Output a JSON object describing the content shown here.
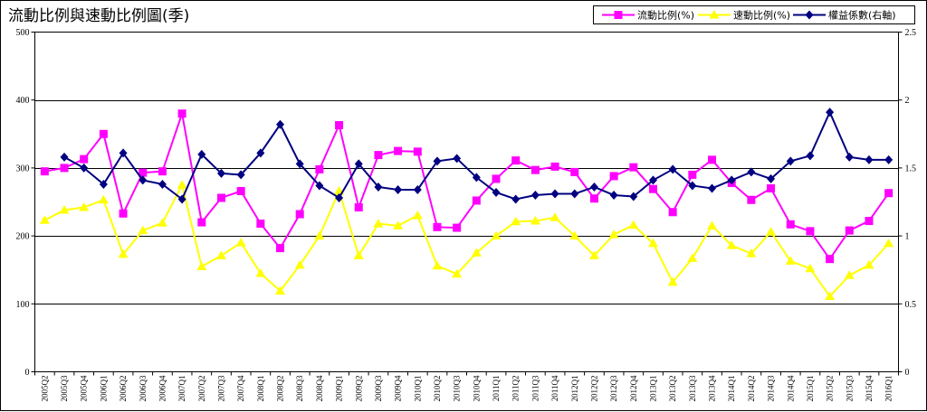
{
  "chart_data": {
    "type": "line",
    "title": "流動比例與速動比例圖(季)",
    "categories": [
      "2005Q2",
      "2005Q3",
      "2005Q4",
      "2006Q1",
      "2006Q2",
      "2006Q3",
      "2006Q4",
      "2007Q1",
      "2007Q2",
      "2007Q3",
      "2007Q4",
      "2008Q1",
      "2008Q2",
      "2008Q3",
      "2008Q4",
      "2009Q1",
      "2009Q2",
      "2009Q3",
      "2009Q4",
      "2010Q1",
      "2010Q2",
      "2010Q3",
      "2010Q4",
      "2011Q1",
      "2011Q2",
      "2011Q3",
      "2011Q4",
      "2012Q1",
      "2012Q2",
      "2012Q3",
      "2012Q4",
      "2013Q1",
      "2013Q2",
      "2013Q3",
      "2013Q4",
      "2014Q1",
      "2014Q2",
      "2014Q3",
      "2014Q4",
      "2015Q1",
      "2015Q2",
      "2015Q3",
      "2015Q4",
      "2016Q1"
    ],
    "y_left": {
      "min": 0,
      "max": 500,
      "ticks": [
        "0",
        "100",
        "200",
        "300",
        "400",
        "500"
      ]
    },
    "y_right": {
      "min": 0,
      "max": 2.5,
      "ticks": [
        "0",
        "0.5",
        "1",
        "1.5",
        "2",
        "2.5"
      ]
    },
    "gridlines": [
      100,
      200,
      300,
      400
    ],
    "legend_position": "top-right",
    "series": [
      {
        "name": "流動比例(%)",
        "axis": "left",
        "color": "#ff00ff",
        "marker": "square",
        "values": [
          295,
          300,
          313,
          350,
          233,
          293,
          295,
          380,
          220,
          256,
          266,
          218,
          182,
          232,
          298,
          363,
          242,
          319,
          325,
          324,
          213,
          212,
          252,
          284,
          311,
          297,
          302,
          294,
          255,
          288,
          301,
          269,
          235,
          290,
          312,
          278,
          253,
          270,
          217,
          207,
          166,
          208,
          222,
          263
        ]
      },
      {
        "name": "速動比例(%)",
        "axis": "left",
        "color": "#ffff00",
        "marker": "triangle",
        "values": [
          223,
          238,
          242,
          253,
          173,
          208,
          219,
          275,
          155,
          171,
          190,
          145,
          119,
          157,
          200,
          266,
          171,
          218,
          215,
          230,
          156,
          144,
          175,
          200,
          221,
          222,
          227,
          200,
          171,
          202,
          216,
          189,
          132,
          167,
          215,
          186,
          174,
          206,
          163,
          152,
          111,
          142,
          157,
          189
        ]
      },
      {
        "name": "權益係數(右軸)",
        "axis": "right",
        "color": "#000080",
        "marker": "diamond",
        "values": [
          null,
          1.58,
          1.5,
          1.38,
          1.61,
          1.41,
          1.38,
          1.27,
          1.6,
          1.46,
          1.45,
          1.61,
          1.82,
          1.53,
          1.37,
          1.28,
          1.53,
          1.36,
          1.34,
          1.34,
          1.55,
          1.57,
          1.43,
          1.32,
          1.27,
          1.3,
          1.31,
          1.31,
          1.36,
          1.3,
          1.29,
          1.41,
          1.49,
          1.37,
          1.35,
          1.41,
          1.47,
          1.42,
          1.55,
          1.59,
          1.91,
          1.58,
          1.56,
          1.56
        ]
      }
    ]
  }
}
